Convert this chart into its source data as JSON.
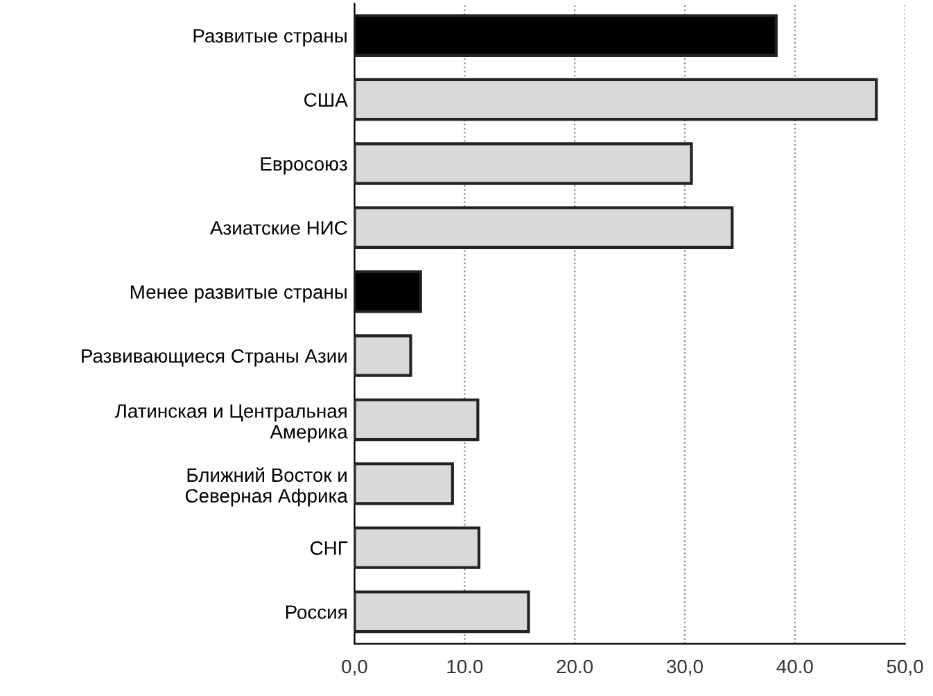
{
  "chart_data": {
    "type": "bar",
    "orientation": "horizontal",
    "categories": [
      "Развитые страны",
      "США",
      "Евросоюз",
      "Азиатские НИС",
      "Менее развитые страны",
      "Развивающиеся Страны Азии",
      "Латинская и Центральная\nАмерика",
      "Ближний Восток и\nСеверная Африка",
      "СНГ",
      "Россия"
    ],
    "values": [
      38.3,
      47.4,
      30.6,
      34.3,
      6.0,
      5.1,
      11.2,
      8.9,
      11.3,
      15.8
    ],
    "colors": [
      "#000000",
      "#d9d9d9",
      "#d9d9d9",
      "#d9d9d9",
      "#000000",
      "#d9d9d9",
      "#d9d9d9",
      "#d9d9d9",
      "#d9d9d9",
      "#d9d9d9"
    ],
    "xlim": [
      0,
      50
    ],
    "xticks": [
      {
        "value": 0,
        "label": "0,0"
      },
      {
        "value": 10,
        "label": "10.0"
      },
      {
        "value": 20,
        "label": "20.0"
      },
      {
        "value": 30,
        "label": "30,0"
      },
      {
        "value": 40,
        "label": "40.0"
      },
      {
        "value": 50,
        "label": "50,0"
      }
    ],
    "grid": "x"
  }
}
